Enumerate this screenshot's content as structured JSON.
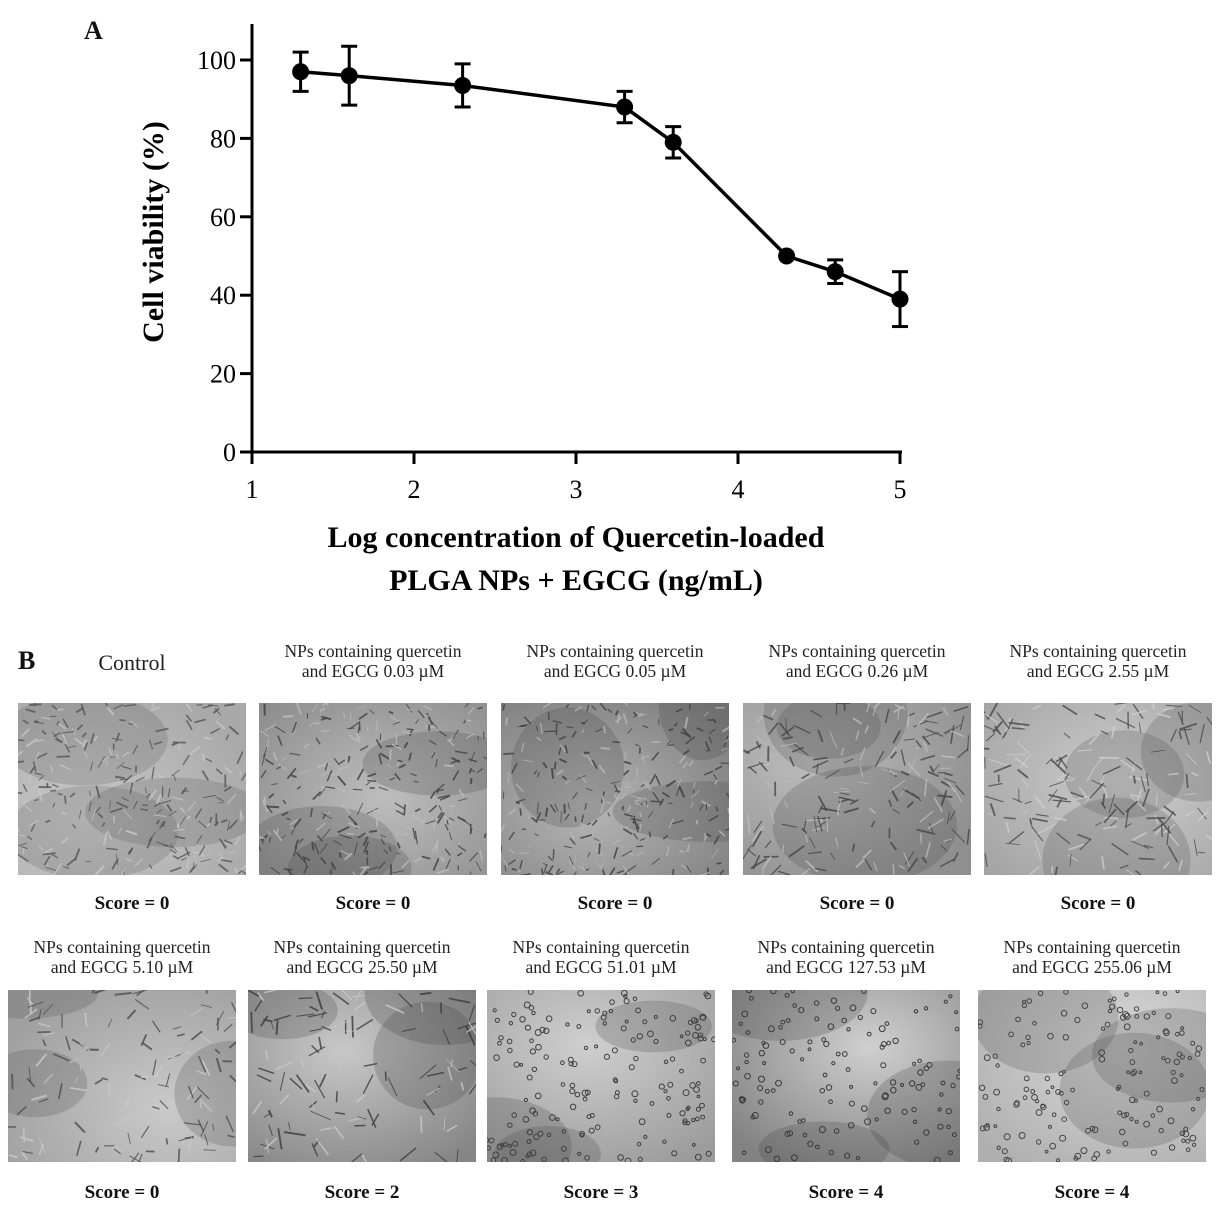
{
  "panel_a_label": "A",
  "panel_b_label": "B",
  "chart_data": {
    "type": "line",
    "title": "",
    "xlabel_line1": "Log concentration of Quercetin-loaded",
    "xlabel_line2": "PLGA NPs + EGCG  (ng/mL)",
    "ylabel": "Cell viability (%)",
    "xlim": [
      1,
      5
    ],
    "ylim": [
      0,
      110
    ],
    "x_ticks": [
      1,
      2,
      3,
      4,
      5
    ],
    "y_ticks": [
      0,
      20,
      40,
      60,
      80,
      100
    ],
    "grid": false,
    "series": [
      {
        "x": [
          1.3,
          1.6,
          2.3,
          3.3,
          3.6,
          4.3,
          4.6,
          5.0
        ],
        "y": [
          97,
          96,
          93.5,
          88,
          79,
          50,
          46,
          39
        ],
        "error": [
          5,
          7.5,
          5.5,
          4,
          4,
          1,
          3,
          7
        ]
      }
    ],
    "color": "#000000"
  },
  "panel_b": {
    "rows": [
      [
        {
          "title_lines": [
            "Control"
          ],
          "score": "Score = 0",
          "tone": "confluent-light"
        },
        {
          "title_lines": [
            "NPs containing quercetin",
            "and EGCG 0.03 µM"
          ],
          "score": "Score = 0",
          "tone": "confluent-dark"
        },
        {
          "title_lines": [
            "NPs containing quercetin",
            "and EGCG 0.05 µM"
          ],
          "score": "Score = 0",
          "tone": "confluent-mid"
        },
        {
          "title_lines": [
            "NPs containing quercetin",
            "and EGCG 0.26 µM"
          ],
          "score": "Score = 0",
          "tone": "elongated"
        },
        {
          "title_lines": [
            "NPs containing quercetin",
            "and EGCG 2.55 µM"
          ],
          "score": "Score = 0",
          "tone": "elongated-light"
        }
      ],
      [
        {
          "title_lines": [
            "NPs containing quercetin",
            "and EGCG 5.10 µM"
          ],
          "score": "Score = 0",
          "tone": "sparse-elongated"
        },
        {
          "title_lines": [
            "NPs containing quercetin",
            "and EGCG 25.50 µM"
          ],
          "score": "Score = 2",
          "tone": "sparse-dark"
        },
        {
          "title_lines": [
            "NPs containing quercetin",
            "and EGCG 51.01 µM"
          ],
          "score": "Score = 3",
          "tone": "round"
        },
        {
          "title_lines": [
            "NPs containing quercetin",
            "and EGCG 127.53 µM"
          ],
          "score": "Score = 4",
          "tone": "round-dark"
        },
        {
          "title_lines": [
            "NPs containing quercetin",
            "and EGCG 255.06 µM"
          ],
          "score": "Score = 4",
          "tone": "round-light"
        }
      ]
    ]
  }
}
